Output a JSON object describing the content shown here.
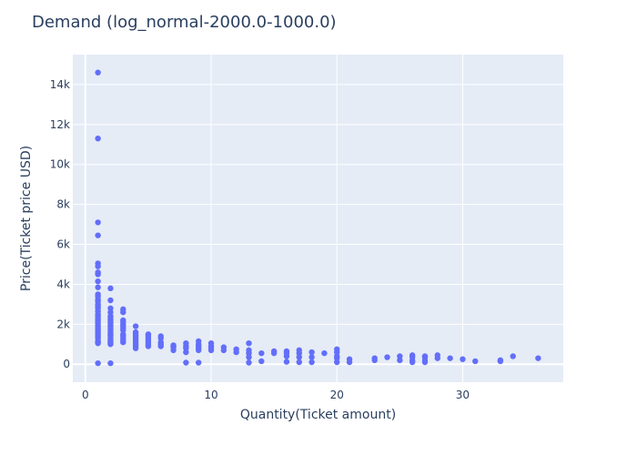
{
  "chart_data": {
    "type": "scatter",
    "title": "Demand (log_normal-2000.0-1000.0)",
    "xlabel": "Quantity(Ticket amount)",
    "ylabel": "Price(Ticket price USD)",
    "xlim": [
      -1,
      38
    ],
    "ylim": [
      -900,
      15500
    ],
    "x_ticks": [
      0,
      10,
      20,
      30
    ],
    "x_tick_labels": [
      "0",
      "10",
      "20",
      "30"
    ],
    "y_ticks": [
      0,
      2000,
      4000,
      6000,
      8000,
      10000,
      12000,
      14000
    ],
    "y_tick_labels": [
      "0",
      "2k",
      "4k",
      "6k",
      "8k",
      "10k",
      "12k",
      "14k"
    ],
    "grid": true,
    "legend": "none",
    "colors": {
      "marker": "#636efa",
      "plot_bg": "#e5ecf6",
      "grid": "#ffffff",
      "text": "#2a3f5f"
    },
    "series": [
      {
        "x": [
          1,
          1,
          1,
          1,
          1,
          1,
          1,
          1,
          1,
          1,
          1,
          1,
          1,
          1,
          1,
          1,
          1,
          1,
          1,
          1,
          1,
          1,
          1,
          1,
          1,
          1,
          1,
          1,
          1,
          1,
          1,
          1,
          1,
          1,
          1,
          2,
          2,
          2,
          2,
          2,
          2,
          2,
          2,
          2,
          2,
          2,
          2,
          2,
          2,
          2,
          2,
          2,
          2,
          2,
          2,
          2,
          2,
          2,
          3,
          3,
          3,
          3,
          3,
          3,
          3,
          3,
          3,
          3,
          3,
          3,
          3,
          4,
          4,
          4,
          4,
          4,
          4,
          4,
          4,
          4,
          4,
          5,
          5,
          5,
          5,
          5,
          5,
          5,
          6,
          6,
          6,
          6,
          6,
          7,
          7,
          7,
          7,
          8,
          8,
          8,
          8,
          8,
          9,
          9,
          9,
          9,
          9,
          9,
          10,
          10,
          10,
          10,
          11,
          11,
          12,
          12,
          13,
          13,
          13,
          13,
          13,
          14,
          14,
          15,
          15,
          16,
          16,
          16,
          16,
          17,
          17,
          17,
          17,
          18,
          18,
          18,
          19,
          20,
          20,
          20,
          20,
          20,
          21,
          21,
          23,
          23,
          24,
          25,
          25,
          26,
          26,
          26,
          26,
          27,
          27,
          27,
          27,
          28,
          28,
          29,
          30,
          31,
          33,
          33,
          34,
          36
        ],
        "y": [
          14600,
          11300,
          7100,
          6450,
          5050,
          4900,
          4600,
          4500,
          4150,
          3850,
          3500,
          3400,
          3250,
          3150,
          3000,
          2900,
          2800,
          2650,
          2500,
          2400,
          2300,
          2200,
          2100,
          2000,
          1900,
          1800,
          1700,
          1600,
          1500,
          1400,
          1300,
          1150,
          1050,
          1100,
          50,
          3800,
          3200,
          2800,
          2600,
          2400,
          2300,
          2200,
          2100,
          2000,
          1900,
          1800,
          1700,
          1600,
          1500,
          1450,
          1400,
          1300,
          1200,
          1100,
          1000,
          1050,
          1150,
          50,
          2750,
          2600,
          2200,
          2100,
          2000,
          1900,
          1800,
          1700,
          1500,
          1400,
          1300,
          1200,
          1100,
          1900,
          1600,
          1500,
          1400,
          1300,
          1200,
          1100,
          1000,
          900,
          800,
          1500,
          1400,
          1300,
          1200,
          1100,
          1000,
          900,
          1400,
          1300,
          1100,
          1000,
          900,
          950,
          900,
          850,
          700,
          1050,
          900,
          800,
          600,
          80,
          1150,
          1000,
          900,
          800,
          700,
          80,
          1050,
          900,
          800,
          700,
          850,
          700,
          750,
          600,
          1050,
          700,
          550,
          350,
          80,
          550,
          150,
          650,
          550,
          650,
          550,
          400,
          120,
          700,
          550,
          350,
          100,
          600,
          350,
          100,
          550,
          750,
          600,
          400,
          300,
          100,
          250,
          100,
          300,
          200,
          350,
          400,
          200,
          450,
          350,
          200,
          100,
          400,
          350,
          200,
          100,
          450,
          300,
          300,
          250,
          150,
          200,
          150,
          400,
          300
        ]
      }
    ]
  }
}
